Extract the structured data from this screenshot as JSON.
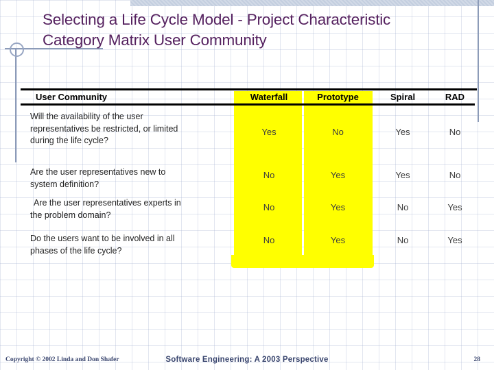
{
  "slide": {
    "title": "Selecting a Life Cycle Model - Project Characteristic\nCategory Matrix User Community"
  },
  "table": {
    "header": {
      "category": "User Community",
      "columns": [
        "Waterfall",
        "Prototype",
        "Spiral",
        "RAD"
      ]
    },
    "rows": [
      {
        "question": "Will the availability of the user\nrepresentatives be restricted, or limited\nduring the life cycle?",
        "values": [
          "Yes",
          "No",
          "Yes",
          "No"
        ]
      },
      {
        "question": "Are the user representatives new to\nsystem definition?",
        "values": [
          "No",
          "Yes",
          "Yes",
          "No"
        ]
      },
      {
        "question": "Are the user representatives experts in\nthe problem domain?",
        "values": [
          "No",
          "Yes",
          "No",
          "Yes"
        ]
      },
      {
        "question": "Do the users want to be involved in all\nphases of the life cycle?",
        "values": [
          "No",
          "Yes",
          "No",
          "Yes"
        ]
      }
    ],
    "highlighted_columns": [
      "Waterfall",
      "Prototype"
    ],
    "highlight_color": "#ffff00"
  },
  "footer": {
    "copyright": "Copyright © 2002 Linda and Don Shafer",
    "center": "Software Engineering: A 2003 Perspective",
    "page_number": "28"
  },
  "colors": {
    "title_text": "#55215f",
    "accent_line": "#8c9bb8",
    "footer_text": "#39456e",
    "highlight": "#ffff00",
    "table_rule": "#000000"
  }
}
